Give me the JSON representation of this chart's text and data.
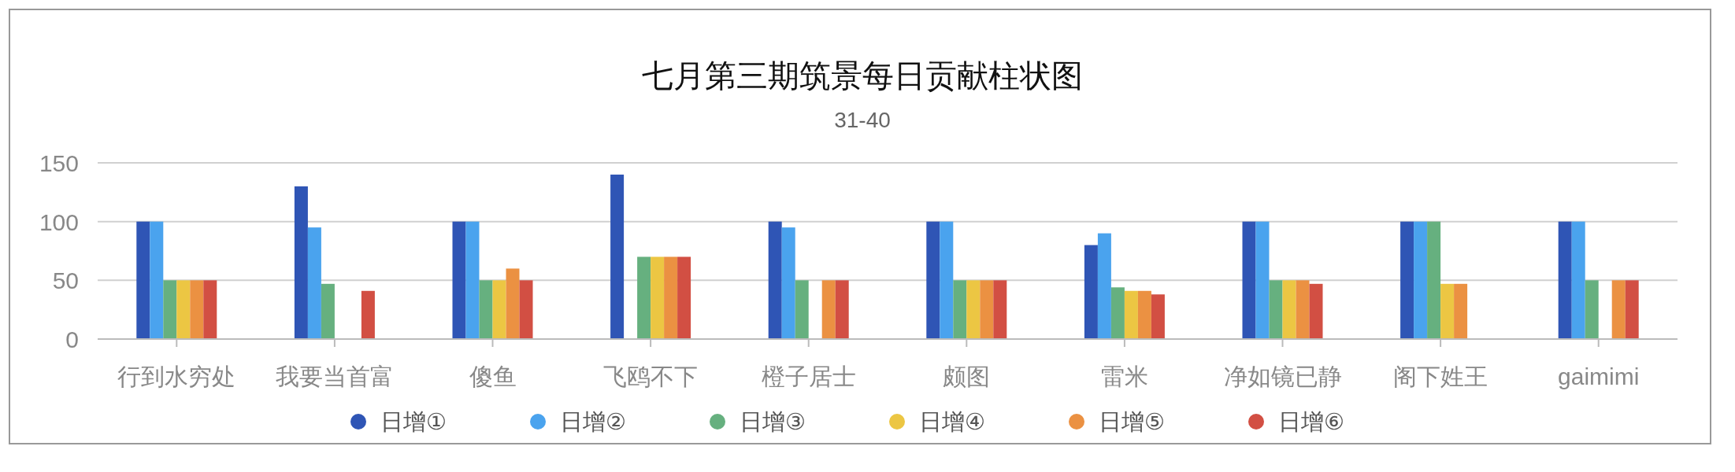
{
  "chart_data": {
    "type": "bar",
    "title": "七月第三期筑景每日贡献柱状图",
    "subtitle": "31-40",
    "categories": [
      "行到水穷处",
      "我要当首富",
      "傻鱼",
      "飞鸥不下",
      "橙子居士",
      "颇图",
      "雷米",
      "净如镜已静",
      "阁下姓王",
      "gaimimi"
    ],
    "ylim": [
      0,
      150
    ],
    "yticks": [
      0,
      50,
      100,
      150
    ],
    "grid": "y",
    "legend": "bottom",
    "series": [
      {
        "name": "日增①",
        "color": "#2f55b5",
        "values": [
          100,
          130,
          100,
          140,
          100,
          100,
          80,
          100,
          100,
          100
        ]
      },
      {
        "name": "日增②",
        "color": "#4aa3ee",
        "values": [
          100,
          95,
          100,
          null,
          95,
          100,
          90,
          100,
          100,
          100
        ]
      },
      {
        "name": "日增③",
        "color": "#66b07f",
        "values": [
          50,
          47,
          50,
          70,
          50,
          50,
          44,
          50,
          100,
          50
        ]
      },
      {
        "name": "日增④",
        "color": "#ecc643",
        "values": [
          50,
          null,
          50,
          70,
          null,
          50,
          41,
          50,
          47,
          null
        ]
      },
      {
        "name": "日增⑤",
        "color": "#eb9142",
        "values": [
          50,
          null,
          60,
          70,
          50,
          50,
          41,
          50,
          47,
          50
        ]
      },
      {
        "name": "日增⑥",
        "color": "#d24f43",
        "values": [
          50,
          41,
          50,
          70,
          50,
          50,
          38,
          47,
          null,
          50
        ]
      }
    ]
  }
}
